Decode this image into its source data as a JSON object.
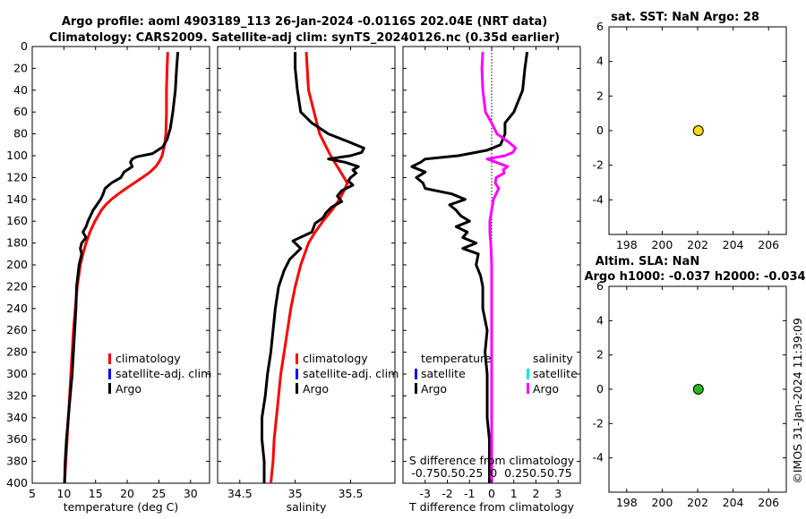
{
  "header": {
    "line1": "Argo profile: aoml 4903189_113 26-Jan-2024 -0.0116S 202.04E (NRT data)",
    "line2": "Climatology: CARS2009. Satellite-adj clim: synTS_20240126.nc (0.35d earlier)"
  },
  "watermark": "©IMOS 31-Jan-2024 11:39:09",
  "colors": {
    "climatology": "#ff0000",
    "satellite_adj": "#0000ff",
    "argo": "#000000",
    "salinity_diff": "#ff00ff",
    "salinity_sat": "#00e5ee",
    "sst_marker": "#ffdd00",
    "sla_marker": "#22bb22"
  },
  "chart_data": [
    {
      "id": "temperature",
      "type": "line",
      "xlabel": "temperature (deg C)",
      "xlim": [
        5,
        33
      ],
      "xticks": [
        5,
        10,
        15,
        20,
        25,
        30
      ],
      "ylim": [
        0,
        400
      ],
      "yticks": [
        0,
        20,
        40,
        60,
        80,
        100,
        120,
        140,
        160,
        180,
        200,
        220,
        240,
        260,
        280,
        300,
        320,
        340,
        360,
        380,
        400
      ],
      "legend": [
        "climatology",
        "satellite-adj. clim",
        "Argo"
      ],
      "series": [
        {
          "name": "climatology",
          "color": "#ff0000",
          "depth": [
            5,
            20,
            40,
            60,
            80,
            90,
            100,
            105,
            110,
            115,
            120,
            125,
            130,
            135,
            140,
            145,
            150,
            160,
            170,
            180,
            190,
            200,
            220,
            240,
            260,
            280,
            300,
            320,
            340,
            360,
            380,
            400
          ],
          "values": [
            26.4,
            26.3,
            26.2,
            26.2,
            26.1,
            25.9,
            25.5,
            25.1,
            24.5,
            23.6,
            22.4,
            21.1,
            19.8,
            18.6,
            17.5,
            16.6,
            15.9,
            14.9,
            14.1,
            13.5,
            13.0,
            12.6,
            12.1,
            11.8,
            11.5,
            11.3,
            11.1,
            10.9,
            10.7,
            10.5,
            10.3,
            10.1
          ]
        },
        {
          "name": "Argo",
          "color": "#000000",
          "depth": [
            5,
            20,
            40,
            60,
            75,
            85,
            92,
            98,
            101,
            103,
            106,
            110,
            115,
            120,
            125,
            130,
            135,
            140,
            145,
            150,
            155,
            160,
            165,
            170,
            175,
            180,
            185,
            190,
            200,
            210,
            220,
            240,
            260,
            280,
            300,
            320,
            340,
            360,
            380,
            400
          ],
          "values": [
            28.0,
            27.8,
            27.6,
            27.2,
            26.8,
            26.3,
            25.6,
            24.0,
            21.5,
            20.8,
            20.5,
            20.8,
            19.5,
            19.0,
            17.5,
            16.5,
            16.2,
            15.8,
            15.2,
            14.6,
            14.2,
            13.8,
            13.5,
            13.0,
            13.5,
            12.8,
            12.6,
            12.8,
            12.4,
            12.2,
            12.0,
            11.9,
            11.7,
            11.5,
            11.3,
            11.0,
            10.7,
            10.4,
            10.2,
            10.1
          ]
        }
      ]
    },
    {
      "id": "salinity",
      "type": "line",
      "xlabel": "salinity",
      "xlim": [
        34.3,
        35.9
      ],
      "xticks": [
        34.5,
        35,
        35.5
      ],
      "ylim": [
        0,
        400
      ],
      "legend": [
        "climatology",
        "satellite-adj. clim",
        "Argo"
      ],
      "series": [
        {
          "name": "climatology",
          "color": "#ff0000",
          "depth": [
            5,
            40,
            80,
            100,
            110,
            120,
            125,
            130,
            140,
            150,
            160,
            170,
            180,
            200,
            220,
            240,
            260,
            280,
            300,
            320,
            340,
            360,
            380,
            400
          ],
          "values": [
            35.1,
            35.12,
            35.22,
            35.32,
            35.38,
            35.44,
            35.47,
            35.45,
            35.4,
            35.33,
            35.25,
            35.18,
            35.12,
            35.05,
            35.0,
            34.96,
            34.93,
            34.9,
            34.87,
            34.85,
            34.83,
            34.81,
            34.8,
            34.78
          ]
        },
        {
          "name": "Argo",
          "color": "#000000",
          "depth": [
            5,
            20,
            40,
            60,
            70,
            80,
            88,
            93,
            97,
            100,
            103,
            106,
            110,
            113,
            116,
            120,
            123,
            127,
            132,
            137,
            142,
            147,
            152,
            157,
            162,
            170,
            178,
            185,
            195,
            205,
            220,
            240,
            260,
            280,
            300,
            320,
            340,
            360,
            380,
            400
          ],
          "values": [
            35.0,
            35.0,
            35.02,
            35.05,
            35.15,
            35.3,
            35.5,
            35.62,
            35.6,
            35.5,
            35.3,
            35.45,
            35.57,
            35.52,
            35.55,
            35.5,
            35.48,
            35.52,
            35.42,
            35.38,
            35.42,
            35.33,
            35.28,
            35.25,
            35.18,
            35.15,
            34.98,
            35.05,
            34.95,
            34.9,
            34.85,
            34.82,
            34.8,
            34.78,
            34.75,
            34.73,
            34.7,
            34.7,
            34.72,
            34.72
          ]
        }
      ]
    },
    {
      "id": "difference",
      "type": "line",
      "xlabel": "T difference from climatology",
      "xlabel_top": "S difference from climatology",
      "xlim": [
        -4,
        4
      ],
      "xticks": [
        -3,
        -2,
        -1,
        0,
        1,
        2,
        3
      ],
      "top_ticks": "-0.750.50.25  0  0.250.50.75",
      "ylim": [
        0,
        400
      ],
      "legend_temperature": {
        "title": "temperature",
        "items": [
          "satellite",
          "Argo"
        ]
      },
      "legend_salinity": {
        "title": "salinity",
        "items": [
          "satellite",
          "Argo"
        ]
      },
      "series": [
        {
          "name": "T difference (Argo)",
          "color": "#000000",
          "depth": [
            5,
            20,
            40,
            60,
            70,
            80,
            90,
            95,
            100,
            103,
            106,
            110,
            115,
            120,
            125,
            130,
            135,
            140,
            145,
            150,
            155,
            160,
            165,
            170,
            175,
            180,
            185,
            190,
            200,
            210,
            220,
            240,
            260,
            280,
            300,
            320,
            340,
            360,
            380,
            400
          ],
          "values": [
            1.6,
            1.5,
            1.4,
            1.0,
            0.6,
            0.6,
            0.4,
            -0.2,
            -1.5,
            -3.0,
            -3.2,
            -3.6,
            -3.0,
            -3.4,
            -3.1,
            -3.0,
            -1.8,
            -1.2,
            -1.9,
            -1.6,
            -1.4,
            -1.0,
            -1.6,
            -1.1,
            -1.3,
            -0.7,
            -1.3,
            -0.6,
            -0.7,
            -0.5,
            -0.4,
            -0.4,
            -0.2,
            -0.3,
            -0.2,
            -0.2,
            -0.2,
            -0.1,
            -0.1,
            -0.1
          ]
        },
        {
          "name": "S difference (Argo)",
          "color": "#ff00ff",
          "depth": [
            5,
            20,
            40,
            60,
            70,
            80,
            88,
            93,
            97,
            100,
            103,
            106,
            110,
            113,
            116,
            120,
            125,
            130,
            140,
            150,
            160,
            170,
            180,
            200,
            220,
            240,
            260,
            280,
            300,
            320,
            340,
            360,
            380,
            400
          ],
          "values": [
            -0.1,
            -0.11,
            -0.1,
            -0.07,
            0.0,
            0.06,
            0.2,
            0.27,
            0.24,
            0.15,
            -0.05,
            0.05,
            0.18,
            0.13,
            0.14,
            0.05,
            0.04,
            0.08,
            0.02,
            0.0,
            -0.02,
            -0.02,
            -0.01,
            0.0,
            0.0,
            0.0,
            0.0,
            0.0,
            0.0,
            0.0,
            0.0,
            0.0,
            0.0,
            0.0
          ]
        }
      ]
    },
    {
      "id": "sst",
      "type": "scatter",
      "title": "sat. SST: NaN Argo: 28",
      "xlim": [
        197,
        207
      ],
      "xticks": [
        198,
        200,
        202,
        204,
        206
      ],
      "ylim": [
        -6,
        6
      ],
      "yticks": [
        -4,
        -2,
        0,
        2,
        4,
        6
      ],
      "points": [
        {
          "x": 202.04,
          "y": 0,
          "color": "#ffdd00"
        }
      ]
    },
    {
      "id": "sla",
      "type": "scatter",
      "title_line1": "Altim. SLA: NaN",
      "title_line2": "Argo h1000: -0.037 h2000: -0.034",
      "xlim": [
        197,
        207
      ],
      "xticks": [
        198,
        200,
        202,
        204,
        206
      ],
      "ylim": [
        -6,
        6
      ],
      "yticks": [
        -4,
        -2,
        0,
        2,
        4,
        6
      ],
      "points": [
        {
          "x": 202.04,
          "y": 0,
          "color": "#22bb22"
        }
      ]
    }
  ]
}
